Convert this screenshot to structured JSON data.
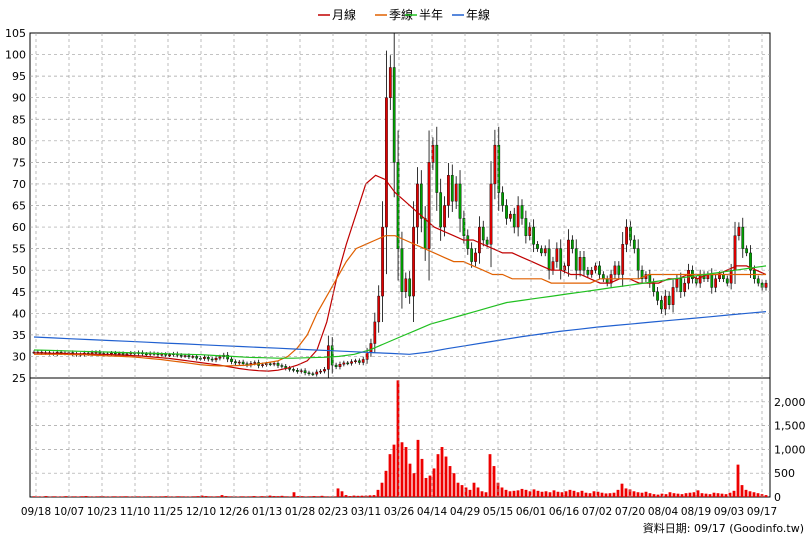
{
  "legend": {
    "month_line": "月線",
    "quarter_line": "季線",
    "half_year_line": "半年",
    "year_line": "年線"
  },
  "footer": {
    "source_note": "資料日期: 09/17  (Goodinfo.tw)"
  },
  "colors": {
    "month_line": "#c00000",
    "quarter_line": "#e06000",
    "half_year_line": "#20c020",
    "year_line": "#2060d0",
    "candle_up": "#e00000",
    "candle_down": "#00a000",
    "volume_bar": "#ee0000",
    "grid": "#a0a0a0"
  },
  "chart_data": [
    {
      "type": "line",
      "title": "",
      "legend_position": "top-center",
      "grid": true,
      "x_ticks": [
        "09/18",
        "10/07",
        "10/23",
        "11/10",
        "11/25",
        "12/10",
        "12/26",
        "01/13",
        "01/28",
        "02/23",
        "03/11",
        "03/26",
        "04/14",
        "04/29",
        "05/15",
        "06/01",
        "06/16",
        "07/02",
        "07/20",
        "08/04",
        "08/19",
        "09/03",
        "09/17"
      ],
      "ylim": [
        25,
        105
      ],
      "y_ticks": [
        25,
        30,
        35,
        40,
        45,
        50,
        55,
        60,
        65,
        70,
        75,
        80,
        85,
        90,
        95,
        100,
        105
      ],
      "candles_note": "daily candlestick series, approximate closes per session",
      "close": [
        31,
        31,
        30.8,
        30.9,
        30.7,
        30.6,
        31,
        30.8,
        30.7,
        30.9,
        30.6,
        30.4,
        30.5,
        30.8,
        30.6,
        30.9,
        31,
        30.7,
        30.5,
        30.6,
        30.8,
        30.6,
        30.7,
        30.5,
        30.6,
        30.8,
        30.7,
        30.9,
        30.6,
        30.5,
        30.7,
        30.6,
        30.4,
        30.5,
        30.3,
        30.4,
        30.6,
        30.3,
        30.1,
        30.2,
        29.9,
        30,
        29.6,
        29.5,
        29.8,
        29.4,
        29.2,
        29.6,
        29.9,
        30.3,
        29.4,
        28.8,
        28.5,
        28.7,
        28.3,
        28,
        28.4,
        28.6,
        27.9,
        28.1,
        28.3,
        28.2,
        28.4,
        27.9,
        27.7,
        27.3,
        27,
        26.8,
        26.5,
        26.7,
        26.2,
        26,
        25.9,
        26.4,
        26.6,
        27,
        32.5,
        28,
        27.6,
        28.2,
        28.5,
        28.4,
        28.8,
        29,
        28.6,
        29.3,
        31,
        33,
        38,
        44,
        60,
        90,
        97,
        75,
        55,
        45,
        48,
        44,
        60,
        70,
        62,
        55,
        75,
        79,
        68,
        60,
        65,
        72,
        66,
        70,
        62,
        58,
        55,
        52,
        54,
        60,
        57,
        56,
        70,
        79,
        68,
        65,
        62,
        63,
        60,
        65,
        62,
        58,
        60,
        56,
        55,
        54,
        55,
        50,
        52,
        55,
        50,
        51,
        57,
        55,
        50,
        53,
        50,
        49,
        50,
        51,
        49,
        48,
        47,
        49,
        51,
        49,
        56,
        60,
        57,
        55,
        50,
        48,
        49,
        47,
        45,
        43,
        41,
        44,
        42,
        46,
        48,
        45,
        47,
        50,
        48,
        47,
        49,
        48,
        49,
        46,
        48,
        49,
        48,
        47,
        50,
        58,
        60,
        55,
        54,
        50,
        48,
        47,
        46,
        47
      ],
      "series": [
        {
          "name": "月線",
          "values": [
            30.8,
            30.8,
            30.7,
            30.7,
            30.6,
            30.6,
            30.5,
            30.5,
            30.4,
            30.3,
            30.2,
            30.1,
            29.9,
            29.7,
            29.5,
            29.2,
            28.9,
            28.6,
            28.3,
            28.0,
            27.6,
            27.2,
            26.9,
            26.7,
            26.6,
            26.8,
            27.3,
            28.0,
            29.0,
            31.5,
            38,
            48,
            56,
            63,
            70,
            72,
            71,
            68,
            66,
            64,
            62,
            60,
            59,
            58,
            57,
            57,
            56,
            55,
            54,
            54,
            53,
            52,
            51,
            50,
            50,
            49,
            49,
            48,
            47,
            47,
            48,
            48,
            47,
            47,
            47,
            48,
            48,
            49,
            48,
            49,
            49,
            50,
            51,
            51,
            50,
            49
          ]
        },
        {
          "name": "季線",
          "values": [
            30.5,
            30.5,
            30.5,
            30.5,
            30.4,
            30.4,
            30.3,
            30.2,
            30.1,
            30.0,
            29.9,
            29.7,
            29.5,
            29.3,
            29.0,
            28.7,
            28.4,
            28.1,
            27.9,
            27.8,
            27.8,
            27.9,
            28.0,
            28.3,
            28.6,
            29.0,
            30,
            32,
            35,
            40,
            44,
            48,
            52,
            55,
            56,
            57,
            58,
            58,
            57,
            56,
            55,
            54,
            53,
            52,
            52,
            51,
            50,
            49,
            49,
            48,
            48,
            48,
            48,
            47,
            47,
            47,
            47,
            47,
            48,
            48,
            48,
            48,
            48,
            49,
            49,
            49,
            49,
            49,
            49,
            49,
            49,
            49,
            49,
            49,
            49,
            49
          ]
        },
        {
          "name": "半年",
          "values": [
            31.5,
            31.4,
            31.3,
            31.2,
            31.1,
            31.0,
            30.9,
            30.8,
            30.7,
            30.6,
            30.5,
            30.4,
            30.2,
            30.0,
            29.8,
            29.7,
            29.6,
            29.6,
            29.7,
            29.8,
            30,
            30.5,
            31.5,
            33,
            34.5,
            36,
            37.5,
            38.5,
            39.5,
            40.5,
            41.5,
            42.5,
            43,
            43.5,
            44,
            44.5,
            45,
            45.5,
            46,
            46.5,
            47,
            47.5,
            48,
            48.5,
            49,
            49.5,
            50,
            50.5,
            51
          ]
        },
        {
          "name": "年線",
          "values": [
            34.5,
            34.3,
            34.1,
            33.9,
            33.7,
            33.5,
            33.3,
            33.1,
            32.9,
            32.7,
            32.5,
            32.3,
            32.1,
            31.9,
            31.7,
            31.5,
            31.3,
            31.1,
            30.9,
            30.7,
            30.5,
            31,
            31.8,
            32.5,
            33.2,
            33.9,
            34.6,
            35.2,
            35.8,
            36.3,
            36.8,
            37.2,
            37.6,
            38,
            38.4,
            38.8,
            39.2,
            39.6,
            40,
            40.4
          ]
        }
      ]
    },
    {
      "type": "bar",
      "title": "",
      "ylim": [
        0,
        2500
      ],
      "y_ticks": [
        0,
        500,
        1000,
        1500,
        2000
      ],
      "y_tick_labels": [
        "0",
        "500",
        "1,000",
        "1,500",
        "2,000"
      ],
      "grid": true,
      "values": [
        15,
        12,
        10,
        20,
        8,
        15,
        10,
        12,
        18,
        9,
        14,
        11,
        16,
        20,
        12,
        10,
        14,
        18,
        12,
        10,
        15,
        12,
        14,
        16,
        10,
        12,
        14,
        11,
        13,
        15,
        10,
        12,
        14,
        18,
        12,
        10,
        16,
        14,
        12,
        10,
        15,
        18,
        30,
        20,
        14,
        12,
        16,
        40,
        20,
        14,
        12,
        10,
        15,
        12,
        14,
        20,
        12,
        18,
        15,
        30,
        20,
        18,
        25,
        15,
        12,
        100,
        20,
        18,
        12,
        15,
        20,
        15,
        25,
        14,
        12,
        14,
        180,
        120,
        40,
        20,
        30,
        25,
        28,
        30,
        35,
        40,
        150,
        300,
        550,
        900,
        1100,
        2450,
        1150,
        1050,
        700,
        500,
        1200,
        800,
        400,
        450,
        600,
        900,
        1050,
        850,
        650,
        500,
        300,
        250,
        200,
        150,
        300,
        200,
        120,
        100,
        900,
        650,
        300,
        200,
        150,
        120,
        130,
        140,
        170,
        150,
        120,
        160,
        130,
        110,
        120,
        100,
        140,
        110,
        100,
        120,
        150,
        130,
        100,
        130,
        90,
        80,
        120,
        110,
        90,
        75,
        80,
        90,
        150,
        280,
        180,
        160,
        120,
        100,
        90,
        110,
        80,
        60,
        50,
        70,
        60,
        100,
        80,
        70,
        60,
        80,
        90,
        100,
        140,
        80,
        70,
        60,
        90,
        80,
        70,
        60,
        90,
        130,
        680,
        250,
        150,
        120,
        100,
        80,
        60,
        40
      ]
    }
  ]
}
